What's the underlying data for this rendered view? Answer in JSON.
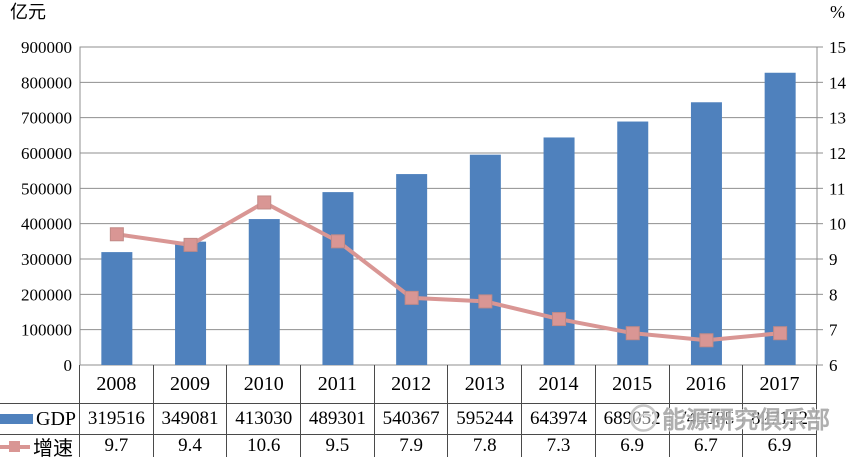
{
  "chart_data": {
    "type": "combo",
    "title": "",
    "categories": [
      "2008",
      "2009",
      "2010",
      "2011",
      "2012",
      "2013",
      "2014",
      "2015",
      "2016",
      "2017"
    ],
    "series": [
      {
        "name": "GDP",
        "type": "bar",
        "axis": "left",
        "color": "#4f81bd",
        "values": [
          319516,
          349081,
          413030,
          489301,
          540367,
          595244,
          643974,
          689052,
          743585,
          827122
        ]
      },
      {
        "name": "增速",
        "type": "line",
        "axis": "right",
        "color": "#d99694",
        "marker": "square",
        "values": [
          9.7,
          9.4,
          10.6,
          9.5,
          7.9,
          7.8,
          7.3,
          6.9,
          6.7,
          6.9
        ]
      }
    ],
    "left_axis": {
      "title": "亿元",
      "min": 0,
      "max": 900000,
      "tick_step": 100000,
      "ticks": [
        "900000",
        "800000",
        "700000",
        "600000",
        "500000",
        "400000",
        "300000",
        "200000",
        "100000",
        "0"
      ]
    },
    "right_axis": {
      "title": "%",
      "min": 6,
      "max": 15,
      "tick_step": 1,
      "ticks": [
        "15",
        "14",
        "13",
        "12",
        "11",
        "10",
        "9",
        "8",
        "7",
        "6"
      ]
    },
    "grid": true,
    "legend_position": "data-table-left"
  },
  "colors": {
    "bar": "#4f81bd",
    "line": "#d99694",
    "marker_edge": "#c18a87",
    "gridline": "#8f8f8f",
    "table_border": "#4a4a4a"
  },
  "watermark": {
    "text": "能源研究俱乐部",
    "logo": "club-logo-circle-icon"
  }
}
